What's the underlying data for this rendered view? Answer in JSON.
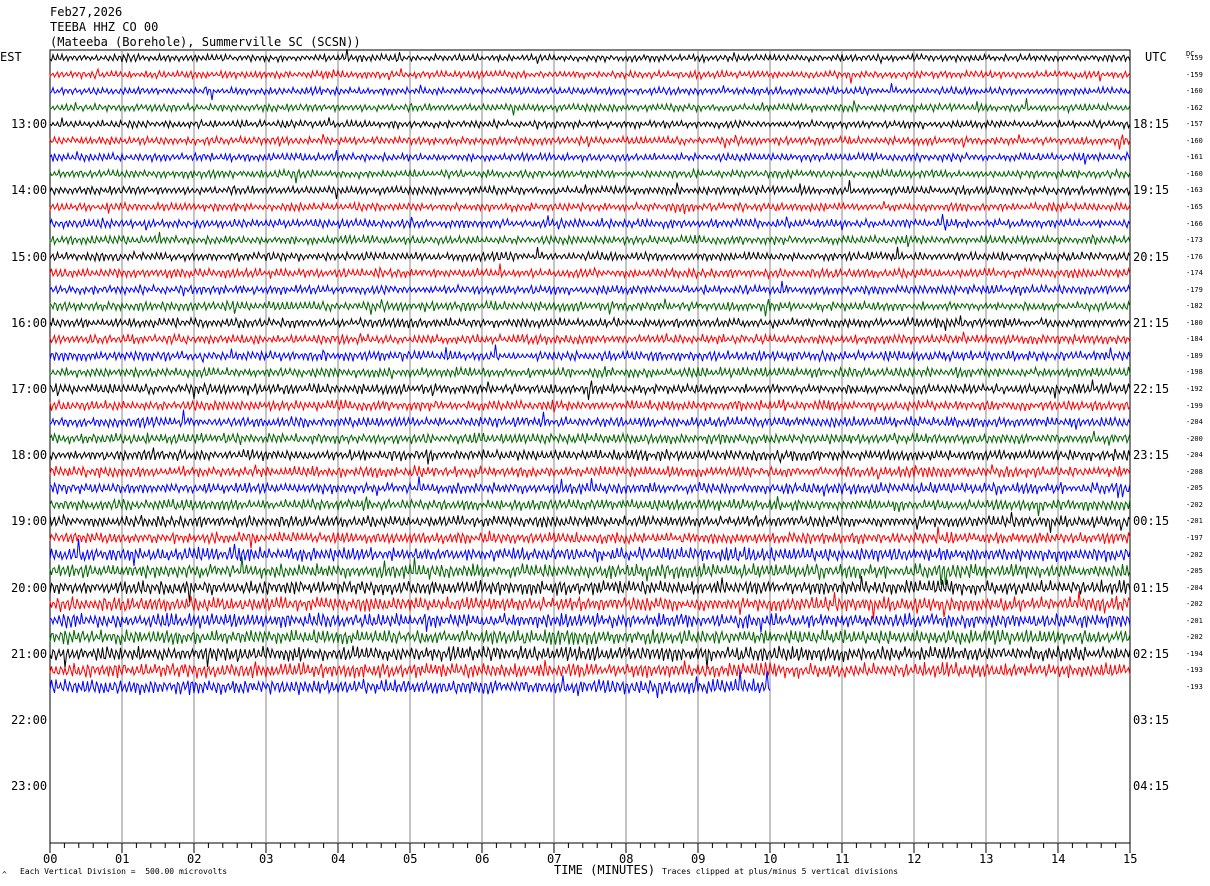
{
  "header": {
    "date": "Feb27,2026",
    "station": "TEEBA HHZ CO 00",
    "location": "(Mateeba (Borehole), Summerville SC (SCSN))"
  },
  "axes": {
    "left_zone": "EST",
    "right_zone": "UTC",
    "dc_label": "DC",
    "x_label": "TIME (MINUTES)",
    "footer_left": "Each Vertical Division =  500.00 microvolts",
    "footer_right": "Traces clipped at plus/minus 5 vertical divisions",
    "corner_mark": "^"
  },
  "chart_data": {
    "type": "line",
    "title": "TEEBA HHZ CO 00",
    "xlabel": "TIME (MINUTES)",
    "x_ticks": [
      "00",
      "01",
      "02",
      "03",
      "04",
      "05",
      "06",
      "07",
      "08",
      "09",
      "10",
      "11",
      "12",
      "13",
      "14",
      "15"
    ],
    "xlim": [
      0,
      15
    ],
    "left_hour_labels": [
      "13:00",
      "14:00",
      "15:00",
      "16:00",
      "17:00",
      "18:00",
      "19:00",
      "20:00",
      "21:00",
      "22:00",
      "23:00"
    ],
    "right_hour_labels": [
      "18:15",
      "19:15",
      "20:15",
      "21:15",
      "22:15",
      "23:15",
      "00:15",
      "01:15",
      "02:15",
      "03:15",
      "04:15"
    ],
    "trace_colors": [
      "#000000",
      "#ff0000",
      "#0000ff",
      "#006400"
    ],
    "trace_interval_minutes": 15,
    "dc_offsets": [
      -159,
      -159,
      -160,
      -162,
      -157,
      -160,
      -161,
      -160,
      -163,
      -165,
      -166,
      -173,
      -176,
      -174,
      -179,
      -182,
      -180,
      -184,
      -189,
      -198,
      -192,
      -199,
      -204,
      -200,
      -204,
      -208,
      -205,
      -202,
      -201,
      -197,
      -202,
      -205,
      -204,
      -202,
      -201,
      -202,
      -194,
      -193,
      -193
    ],
    "last_trace_end_minute": 10,
    "amplitude_units": "500.00 microvolts per vertical division",
    "clip_divisions": 5
  }
}
